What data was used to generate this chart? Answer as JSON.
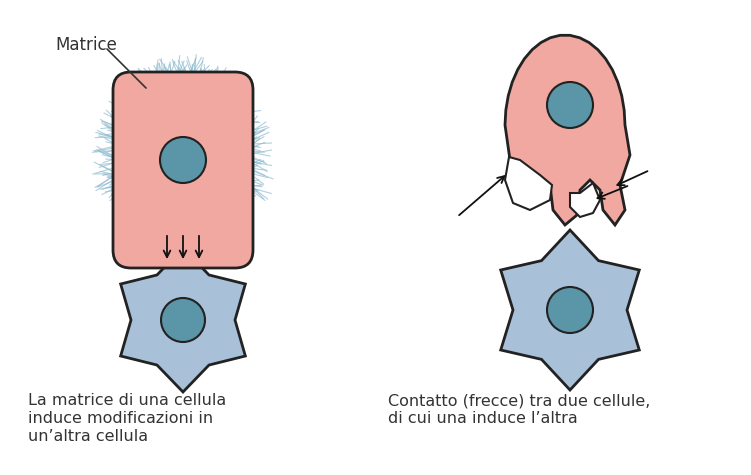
{
  "bg_color": "#ffffff",
  "cell_pink": "#f0a8a0",
  "cell_blue": "#a8c0d8",
  "nucleus_teal": "#5a96a8",
  "matrix_fiber": "#90bcd0",
  "outline": "#222222",
  "arrow_color": "#111111",
  "text_color": "#333333",
  "label_matrice": "Matrice",
  "cap_left": [
    "La matrice di una cellula",
    "induce modificazioni in",
    "un’altra cellula"
  ],
  "cap_right": [
    "Contatto (frecce) tra due cellule,",
    "di cui una induce l’altra"
  ],
  "fig_w": 7.51,
  "fig_h": 4.75,
  "dpi": 100
}
